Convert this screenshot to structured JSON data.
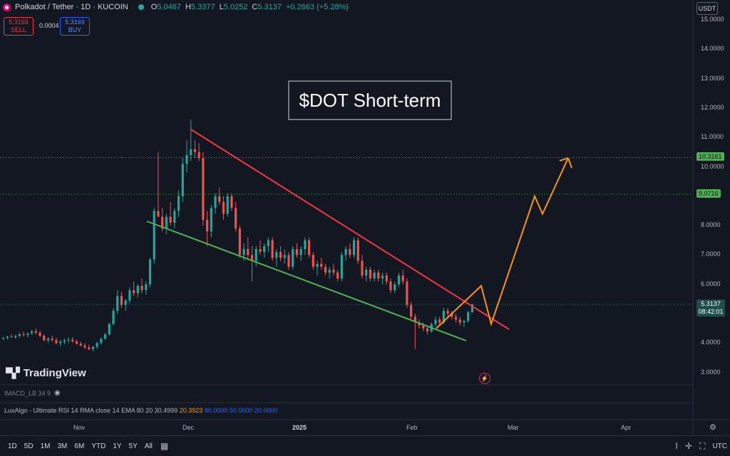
{
  "header": {
    "symbol": "Polkadot / Tether · 1D · KUCOIN",
    "o_label": "O",
    "o_value": "5.0467",
    "h_label": "H",
    "h_value": "5.3377",
    "l_label": "L",
    "l_value": "5.0252",
    "c_label": "C",
    "c_value": "5.3137",
    "change": "+0.2663 (+5.28%)"
  },
  "trade": {
    "sell_price": "5.3165",
    "sell_label": "SELL",
    "spread": "0.0004",
    "buy_price": "5.3169",
    "buy_label": "BUY"
  },
  "currency": "USDT",
  "chart_data": {
    "type": "candlestick",
    "title": "$DOT Short-term",
    "y_ticks": [
      "15.0000",
      "14.0000",
      "13.0000",
      "12.0000",
      "11.0000",
      "10.0000",
      "9.0000",
      "8.0000",
      "7.0000",
      "6.0000",
      "5.0000",
      "4.0000",
      "3.0000"
    ],
    "ylim": [
      3,
      15
    ],
    "x_ticks": [
      "Nov",
      "Dec",
      "2025",
      "Feb",
      "Mar",
      "Apr"
    ],
    "candles": [
      [
        4.15,
        4.2,
        4.1,
        4.18
      ],
      [
        4.18,
        4.25,
        4.12,
        4.22
      ],
      [
        4.22,
        4.3,
        4.18,
        4.2
      ],
      [
        4.2,
        4.28,
        4.15,
        4.25
      ],
      [
        4.25,
        4.35,
        4.2,
        4.3
      ],
      [
        4.3,
        4.4,
        4.22,
        4.28
      ],
      [
        4.28,
        4.35,
        4.2,
        4.33
      ],
      [
        4.33,
        4.45,
        4.3,
        4.4
      ],
      [
        4.4,
        4.5,
        4.3,
        4.35
      ],
      [
        4.35,
        4.42,
        4.2,
        4.25
      ],
      [
        4.25,
        4.3,
        4.05,
        4.1
      ],
      [
        4.1,
        4.2,
        4.0,
        4.15
      ],
      [
        4.15,
        4.25,
        4.05,
        4.1
      ],
      [
        4.1,
        4.18,
        3.95,
        4.0
      ],
      [
        4.0,
        4.1,
        3.9,
        4.05
      ],
      [
        4.05,
        4.15,
        3.95,
        4.1
      ],
      [
        4.1,
        4.2,
        4.0,
        4.12
      ],
      [
        4.12,
        4.2,
        4.02,
        4.06
      ],
      [
        4.06,
        4.12,
        3.95,
        3.98
      ],
      [
        3.98,
        4.05,
        3.88,
        3.92
      ],
      [
        3.92,
        4.0,
        3.8,
        3.85
      ],
      [
        3.85,
        3.95,
        3.75,
        3.8
      ],
      [
        3.8,
        3.9,
        3.72,
        3.88
      ],
      [
        3.88,
        4.05,
        3.8,
        4.0
      ],
      [
        4.0,
        4.2,
        3.95,
        4.15
      ],
      [
        4.15,
        4.35,
        4.1,
        4.3
      ],
      [
        4.3,
        4.7,
        4.25,
        4.65
      ],
      [
        4.65,
        5.2,
        4.6,
        5.1
      ],
      [
        5.1,
        5.8,
        5.0,
        5.6
      ],
      [
        5.6,
        5.75,
        5.2,
        5.3
      ],
      [
        5.3,
        5.5,
        5.1,
        5.45
      ],
      [
        5.45,
        5.9,
        5.35,
        5.8
      ],
      [
        5.8,
        6.1,
        5.6,
        5.7
      ],
      [
        5.7,
        6.0,
        5.55,
        5.95
      ],
      [
        5.95,
        6.2,
        5.7,
        5.8
      ],
      [
        5.8,
        6.1,
        5.65,
        6.0
      ],
      [
        6.0,
        6.9,
        5.9,
        6.85
      ],
      [
        6.85,
        8.6,
        6.7,
        8.5
      ],
      [
        8.5,
        10.5,
        8.3,
        8.3
      ],
      [
        8.3,
        8.6,
        7.8,
        7.9
      ],
      [
        7.9,
        8.4,
        7.7,
        8.3
      ],
      [
        8.3,
        8.8,
        8.0,
        8.1
      ],
      [
        8.1,
        8.6,
        7.9,
        8.5
      ],
      [
        8.5,
        9.2,
        8.3,
        9.0
      ],
      [
        9.0,
        10.3,
        8.8,
        10.1
      ],
      [
        10.1,
        10.9,
        9.8,
        10.4
      ],
      [
        10.4,
        11.6,
        10.2,
        10.6
      ],
      [
        10.6,
        10.9,
        10.3,
        10.5
      ],
      [
        10.5,
        10.8,
        10.2,
        10.3
      ],
      [
        10.3,
        10.5,
        8.0,
        8.2
      ],
      [
        8.2,
        8.5,
        7.3,
        7.8
      ],
      [
        7.8,
        8.7,
        7.6,
        8.6
      ],
      [
        8.6,
        9.1,
        8.4,
        9.0
      ],
      [
        9.0,
        9.3,
        8.7,
        8.8
      ],
      [
        8.8,
        9.0,
        8.2,
        8.4
      ],
      [
        8.4,
        9.1,
        8.3,
        9.0
      ],
      [
        9.0,
        9.1,
        8.5,
        8.6
      ],
      [
        8.6,
        8.8,
        7.8,
        7.9
      ],
      [
        7.9,
        8.0,
        6.9,
        7.0
      ],
      [
        7.0,
        7.4,
        6.8,
        7.2
      ],
      [
        7.2,
        7.6,
        6.9,
        7.0
      ],
      [
        7.0,
        7.3,
        6.1,
        6.8
      ],
      [
        6.8,
        7.3,
        6.6,
        7.2
      ],
      [
        7.2,
        7.5,
        7.0,
        7.1
      ],
      [
        7.1,
        7.4,
        6.9,
        7.3
      ],
      [
        7.3,
        7.6,
        7.1,
        7.5
      ],
      [
        7.5,
        7.6,
        6.8,
        6.9
      ],
      [
        6.9,
        7.2,
        6.6,
        7.1
      ],
      [
        7.1,
        7.3,
        6.8,
        6.9
      ],
      [
        6.9,
        7.2,
        6.7,
        7.0
      ],
      [
        7.0,
        7.1,
        6.5,
        6.6
      ],
      [
        6.6,
        7.3,
        6.5,
        7.2
      ],
      [
        7.2,
        7.4,
        6.9,
        7.0
      ],
      [
        7.0,
        7.3,
        6.8,
        7.2
      ],
      [
        7.2,
        7.6,
        7.0,
        7.5
      ],
      [
        7.5,
        7.6,
        6.9,
        7.0
      ],
      [
        7.0,
        7.1,
        6.5,
        6.6
      ],
      [
        6.6,
        6.8,
        6.3,
        6.7
      ],
      [
        6.7,
        6.9,
        6.5,
        6.6
      ],
      [
        6.6,
        6.7,
        6.3,
        6.4
      ],
      [
        6.4,
        6.6,
        6.2,
        6.5
      ],
      [
        6.5,
        6.7,
        6.3,
        6.4
      ],
      [
        6.4,
        6.5,
        6.1,
        6.2
      ],
      [
        6.2,
        7.1,
        6.1,
        7.0
      ],
      [
        7.0,
        7.3,
        6.8,
        7.2
      ],
      [
        7.2,
        7.4,
        6.9,
        7.0
      ],
      [
        7.0,
        7.6,
        6.9,
        7.5
      ],
      [
        7.5,
        7.6,
        6.7,
        6.8
      ],
      [
        6.8,
        7.0,
        6.2,
        6.3
      ],
      [
        6.3,
        6.6,
        6.1,
        6.5
      ],
      [
        6.5,
        6.6,
        6.1,
        6.2
      ],
      [
        6.2,
        6.5,
        6.1,
        6.4
      ],
      [
        6.4,
        6.5,
        6.1,
        6.2
      ],
      [
        6.2,
        6.4,
        6.0,
        6.3
      ],
      [
        6.3,
        6.4,
        6.0,
        6.1
      ],
      [
        6.1,
        6.2,
        5.7,
        5.8
      ],
      [
        5.8,
        6.1,
        5.7,
        6.0
      ],
      [
        6.0,
        6.4,
        5.9,
        6.3
      ],
      [
        6.3,
        6.5,
        6.0,
        6.1
      ],
      [
        6.1,
        6.2,
        5.2,
        5.3
      ],
      [
        5.3,
        5.4,
        4.8,
        4.9
      ],
      [
        4.9,
        5.0,
        3.8,
        4.7
      ],
      [
        4.7,
        4.8,
        4.5,
        4.6
      ],
      [
        4.6,
        4.7,
        4.4,
        4.5
      ],
      [
        4.5,
        4.6,
        4.3,
        4.4
      ],
      [
        4.4,
        4.7,
        4.35,
        4.65
      ],
      [
        4.65,
        4.9,
        4.55,
        4.8
      ],
      [
        4.8,
        4.9,
        4.6,
        4.7
      ],
      [
        4.7,
        5.2,
        4.65,
        5.1
      ],
      [
        5.1,
        5.2,
        4.9,
        5.0
      ],
      [
        5.0,
        5.1,
        4.8,
        4.9
      ],
      [
        4.9,
        5.0,
        4.7,
        4.8
      ],
      [
        4.8,
        4.9,
        4.6,
        4.7
      ],
      [
        4.7,
        4.8,
        4.55,
        4.75
      ],
      [
        4.75,
        5.1,
        4.7,
        5.05
      ],
      [
        5.05,
        5.34,
        5.03,
        5.3137
      ]
    ],
    "trendlines": [
      {
        "name": "upper-resistance",
        "color": "#f23645",
        "points": [
          [
            268,
            182
          ],
          [
            714,
            463
          ]
        ]
      },
      {
        "name": "lower-support",
        "color": "#4caf50",
        "points": [
          [
            206,
            311
          ],
          [
            654,
            479
          ]
        ]
      }
    ],
    "projection": {
      "color": "#f7931a",
      "price_levels": [
        4.5,
        5.1,
        5.95,
        4.65,
        9.0,
        8.4,
        10.3
      ]
    },
    "levels": [
      {
        "price": "10.3161",
        "color": "#4caf50"
      },
      {
        "price": "9.0716",
        "color": "#4caf50"
      }
    ],
    "current_price": {
      "value": "5.3137",
      "countdown": "08:42:01"
    }
  },
  "branding": {
    "name": "TradingView"
  },
  "indicators": {
    "macd": "IMACD_LB 34 9",
    "rsi_label": "LuxAlgo - Ultimate RSI 14 RMA close 14 EMA 80 20",
    "rsi_v1": "30.4999",
    "rsi_v2": "20.3923",
    "rsi_v3": "80.0000",
    "rsi_v4": "50.0000",
    "rsi_v5": "20.0000"
  },
  "timeframes": [
    "1D",
    "5D",
    "1M",
    "3M",
    "6M",
    "YTD",
    "1Y",
    "5Y",
    "All"
  ],
  "bottom": {
    "tz": "UTC"
  }
}
